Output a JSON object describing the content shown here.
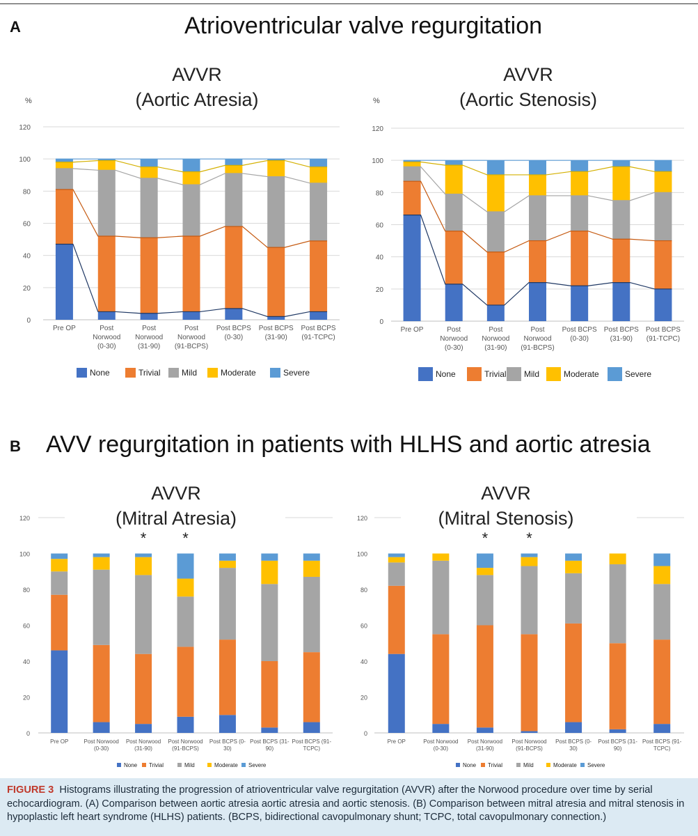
{
  "panels": {
    "A": {
      "letter": "A",
      "heading": "Atrioventricular valve regurgitation"
    },
    "B": {
      "letter": "B",
      "heading": "AVV regurgitation in patients with HLHS and aortic atresia"
    }
  },
  "caption": {
    "label": "FIGURE 3",
    "text": "Histograms illustrating the progression of atrioventricular valve regurgitation (AVVR) after the Norwood procedure over time by serial echocardiogram. (A) Comparison between aortic atresia aortic atresia and aortic stenosis. (B) Comparison between mitral atresia and mitral stenosis in hypoplastic left heart syndrome (HLHS) patients. (BCPS, bidirectional cavopulmonary shunt; TCPC, total cavopulmonary connection.)"
  },
  "colors": {
    "None": "#4472c4",
    "Trivial": "#ed7d31",
    "Mild": "#a5a5a5",
    "Moderate": "#ffc000",
    "Severe": "#5b9bd5"
  },
  "chart_data": [
    {
      "type": "bar",
      "stacked": true,
      "title": "AVVR",
      "subtitle": "(Aortic Atresia)",
      "ylabel": "%",
      "ylim": [
        0,
        120
      ],
      "yticks": [
        0,
        20,
        40,
        60,
        80,
        100,
        120
      ],
      "grid": true,
      "legend": "bottom",
      "connector_lines": true,
      "categories": [
        "Pre OP",
        "Post\nNorwood\n(0-30)",
        "Post\nNorwood\n(31-90)",
        "Post\nNorwood\n(91-BCPS)",
        "Post BCPS\n(0-30)",
        "Post BCPS\n(31-90)",
        "Post BCPS\n(91-TCPC)"
      ],
      "series": [
        {
          "name": "None",
          "values": [
            47,
            5,
            4,
            5,
            7,
            2,
            5
          ]
        },
        {
          "name": "Trivial",
          "values": [
            34,
            47,
            47,
            47,
            51,
            43,
            44
          ]
        },
        {
          "name": "Mild",
          "values": [
            13,
            41,
            37,
            32,
            33,
            44,
            36
          ]
        },
        {
          "name": "Moderate",
          "values": [
            4,
            6,
            7,
            8,
            5,
            10,
            10
          ]
        },
        {
          "name": "Severe",
          "values": [
            2,
            1,
            5,
            8,
            4,
            1,
            5
          ]
        }
      ]
    },
    {
      "type": "bar",
      "stacked": true,
      "title": "AVVR",
      "subtitle": "(Aortic Stenosis)",
      "ylabel": "%",
      "ylim": [
        0,
        120
      ],
      "yticks": [
        0,
        20,
        40,
        60,
        80,
        100,
        120
      ],
      "grid": true,
      "legend": "bottom",
      "connector_lines": true,
      "categories": [
        "Pre OP",
        "Post\nNorwood\n(0-30)",
        "Post\nNorwood\n(31-90)",
        "Post\nNorwood\n(91-BCPS)",
        "Post BCPS\n(0-30)",
        "Post BCPS\n(31-90)",
        "Post BCPS\n(91-TCPC)"
      ],
      "series": [
        {
          "name": "None",
          "values": [
            66,
            23,
            10,
            24,
            22,
            24,
            20
          ]
        },
        {
          "name": "Trivial",
          "values": [
            21,
            33,
            33,
            26,
            34,
            27,
            30
          ]
        },
        {
          "name": "Mild",
          "values": [
            9,
            23,
            25,
            28,
            22,
            24,
            30
          ]
        },
        {
          "name": "Moderate",
          "values": [
            3,
            18,
            23,
            13,
            15,
            21,
            13
          ]
        },
        {
          "name": "Severe",
          "values": [
            1,
            3,
            9,
            9,
            7,
            4,
            7
          ]
        }
      ]
    },
    {
      "type": "bar",
      "stacked": true,
      "title": "AVVR",
      "subtitle": "(Mitral Atresia)",
      "ylim": [
        0,
        120
      ],
      "yticks": [
        0,
        20,
        40,
        60,
        80,
        100,
        120
      ],
      "grid": false,
      "legend": "bottom",
      "categories": [
        "Pre OP",
        "Post Norwood\n(0-30)",
        "Post Norwood\n(31-90)",
        "Post Norwood\n(91-BCPS)",
        "Post BCPS (0-\n30)",
        "Post BCPS (31-\n90)",
        "Post BCPS (91-\nTCPC)"
      ],
      "annotations": [
        {
          "category_index": 2,
          "text": "*"
        },
        {
          "category_index": 3,
          "text": "*"
        }
      ],
      "series": [
        {
          "name": "None",
          "values": [
            46,
            6,
            5,
            9,
            10,
            3,
            6
          ]
        },
        {
          "name": "Trivial",
          "values": [
            31,
            43,
            39,
            39,
            42,
            37,
            39
          ]
        },
        {
          "name": "Mild",
          "values": [
            13,
            42,
            44,
            28,
            40,
            43,
            42
          ]
        },
        {
          "name": "Moderate",
          "values": [
            7,
            7,
            10,
            10,
            4,
            13,
            9
          ]
        },
        {
          "name": "Severe",
          "values": [
            3,
            2,
            2,
            14,
            4,
            4,
            4
          ]
        }
      ]
    },
    {
      "type": "bar",
      "stacked": true,
      "title": "AVVR",
      "subtitle": "(Mitral Stenosis)",
      "ylim": [
        0,
        120
      ],
      "yticks": [
        0,
        20,
        40,
        60,
        80,
        100,
        120
      ],
      "grid": false,
      "legend": "bottom",
      "categories": [
        "Pre OP",
        "Post Norwood\n(0-30)",
        "Post Norwood\n(31-90)",
        "Post Norwood\n(91-BCPS)",
        "Post BCPS (0-\n30)",
        "Post BCPS (31-\n90)",
        "Post BCPS (91-\nTCPC)"
      ],
      "annotations": [
        {
          "category_index": 2,
          "text": "*"
        },
        {
          "category_index": 3,
          "text": "*"
        }
      ],
      "series": [
        {
          "name": "None",
          "values": [
            44,
            5,
            3,
            1,
            6,
            2,
            5
          ]
        },
        {
          "name": "Trivial",
          "values": [
            38,
            50,
            57,
            54,
            55,
            48,
            47
          ]
        },
        {
          "name": "Mild",
          "values": [
            13,
            41,
            28,
            38,
            28,
            44,
            31
          ]
        },
        {
          "name": "Moderate",
          "values": [
            3,
            4,
            4,
            5,
            7,
            6,
            10
          ]
        },
        {
          "name": "Severe",
          "values": [
            2,
            0,
            8,
            2,
            4,
            0,
            7
          ]
        }
      ]
    }
  ]
}
